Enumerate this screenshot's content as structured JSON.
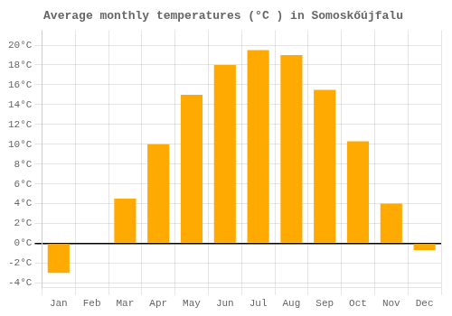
{
  "chart_data": {
    "type": "bar",
    "title": "Average monthly temperatures (°C ) in Somoskőújfalu",
    "categories": [
      "Jan",
      "Feb",
      "Mar",
      "Apr",
      "May",
      "Jun",
      "Jul",
      "Aug",
      "Sep",
      "Oct",
      "Nov",
      "Dec"
    ],
    "values": [
      -3.0,
      0.0,
      4.5,
      10.0,
      15.0,
      18.0,
      19.5,
      19.0,
      15.5,
      10.3,
      4.0,
      -0.7
    ],
    "color": "#FFAA00",
    "ylim": [
      -4.5,
      21.5
    ],
    "yticks": [
      {
        "value": -4,
        "label": "-4°C"
      },
      {
        "value": -2,
        "label": "-2°C"
      },
      {
        "value": 0,
        "label": "0°C"
      },
      {
        "value": 2,
        "label": "2°C"
      },
      {
        "value": 4,
        "label": "4°C"
      },
      {
        "value": 6,
        "label": "6°C"
      },
      {
        "value": 8,
        "label": "8°C"
      },
      {
        "value": 10,
        "label": "10°C"
      },
      {
        "value": 12,
        "label": "12°C"
      },
      {
        "value": 14,
        "label": "14°C"
      },
      {
        "value": 16,
        "label": "16°C"
      },
      {
        "value": 18,
        "label": "18°C"
      },
      {
        "value": 20,
        "label": "20°C"
      }
    ],
    "grid": true
  }
}
